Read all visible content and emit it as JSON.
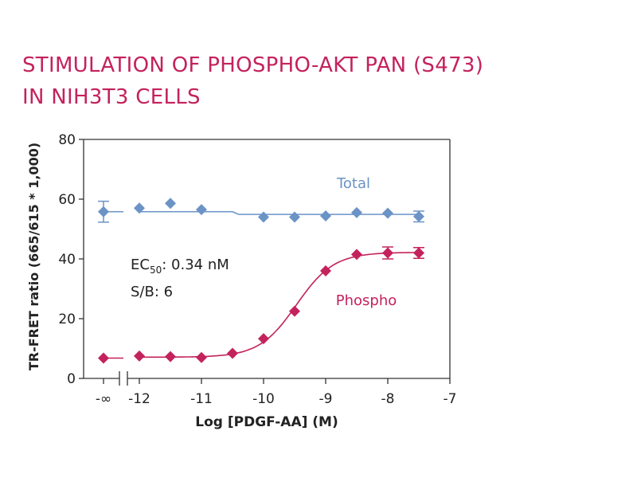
{
  "chart_data": {
    "type": "scatter",
    "title": "STIMULATION OF PHOSPHO-AKT PAN (S473) IN NIH3T3 CELLS",
    "title_lines": [
      "STIMULATION OF PHOSPHO-AKT PAN (S473)",
      "IN NIH3T3 CELLS"
    ],
    "xlabel": "Log [PDGF-AA] (M)",
    "ylabel": "TR-FRET ratio (665/615 * 1,000)",
    "xlim": [
      -12,
      -7
    ],
    "ylim": [
      0,
      80
    ],
    "x_ticks": [
      -12,
      -11,
      -10,
      -9,
      -8,
      -7
    ],
    "x_tick_labels": [
      "-12",
      "-11",
      "-10",
      "-9",
      "-8",
      "-7"
    ],
    "x_break_label": "-∞",
    "y_ticks": [
      0,
      20,
      40,
      60,
      80
    ],
    "y_tick_labels": [
      "0",
      "20",
      "40",
      "60",
      "80"
    ],
    "grid": false,
    "annotations": {
      "ec50_prefix": "EC",
      "ec50_sub": "50",
      "ec50_value": ": 0.34 nM",
      "sb": "S/B: 6"
    },
    "series": [
      {
        "name": "Total",
        "color": "#6b93c6",
        "zero_dose": {
          "y": 55.8,
          "err": 3.5
        },
        "x": [
          -12,
          -11.5,
          -11,
          -10,
          -9.5,
          -9,
          -8.5,
          -8,
          -7.5
        ],
        "y": [
          57.0,
          58.6,
          56.5,
          54.0,
          54.0,
          54.4,
          55.5,
          55.3,
          54.2
        ],
        "err": [
          0.6,
          0.5,
          0.6,
          0.5,
          0.5,
          0.5,
          0.5,
          0.5,
          1.8
        ],
        "fit": "flat"
      },
      {
        "name": "Phospho",
        "color": "#c4225c",
        "zero_dose": {
          "y": 6.8,
          "err": 0.5
        },
        "x": [
          -12,
          -11.5,
          -11,
          -10.5,
          -10,
          -9.5,
          -9,
          -8.5,
          -8,
          -7.5
        ],
        "y": [
          7.5,
          7.3,
          7.0,
          8.4,
          13.3,
          22.5,
          36.0,
          41.5,
          42.0,
          42.0
        ],
        "err": [
          0.4,
          0.4,
          0.4,
          0.4,
          0.5,
          0.6,
          0.7,
          0.6,
          2.0,
          1.8
        ],
        "fit": "sigmoid",
        "fit_params": {
          "bottom": 7.1,
          "top": 42.2,
          "log_ec50": -9.47,
          "hill": 1.45
        }
      }
    ]
  }
}
